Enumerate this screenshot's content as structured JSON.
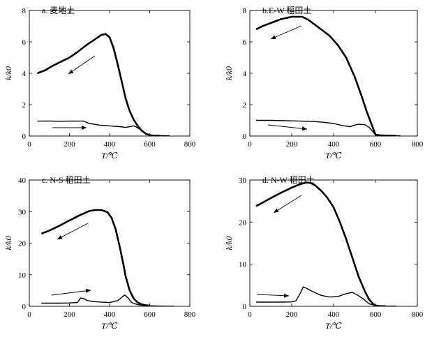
{
  "chart_data": [
    {
      "type": "line",
      "title": "a. 麦地土",
      "xlabel": "T/℃",
      "ylabel": "k/k0",
      "xlim": [
        0,
        800
      ],
      "ylim": [
        0,
        8
      ],
      "x_ticks": [
        "0",
        "200",
        "400",
        "600",
        "800"
      ],
      "y_ticks": [
        "0",
        "2",
        "4",
        "6",
        "8"
      ],
      "series": [
        {
          "name": "heating",
          "x": [
            40,
            100,
            150,
            200,
            250,
            270,
            280,
            300,
            350,
            400,
            450,
            480,
            500,
            520,
            530,
            560,
            580,
            600,
            650,
            700
          ],
          "y": [
            0.95,
            0.96,
            0.94,
            0.95,
            0.95,
            0.96,
            0.9,
            0.8,
            0.7,
            0.65,
            0.6,
            0.55,
            0.6,
            0.65,
            0.6,
            0.35,
            0.15,
            0.05,
            0.03,
            0.02
          ]
        },
        {
          "name": "cooling",
          "x": [
            40,
            80,
            120,
            160,
            200,
            240,
            280,
            320,
            360,
            380,
            400,
            420,
            440,
            460,
            480,
            500,
            520,
            540,
            560,
            580,
            600,
            620,
            650
          ],
          "y": [
            4.0,
            4.2,
            4.5,
            4.75,
            5.0,
            5.35,
            5.75,
            6.1,
            6.45,
            6.5,
            6.3,
            5.6,
            4.6,
            3.5,
            2.4,
            1.6,
            1.05,
            0.65,
            0.35,
            0.15,
            0.06,
            0.03,
            0.02
          ]
        }
      ]
    },
    {
      "type": "line",
      "title": "b.E-W 稻田土",
      "xlabel": "T/℃",
      "ylabel": "k/k0",
      "xlim": [
        0,
        800
      ],
      "ylim": [
        0,
        8
      ],
      "x_ticks": [
        "0",
        "200",
        "400",
        "600",
        "800"
      ],
      "y_ticks": [
        "0",
        "2",
        "4",
        "6",
        "8"
      ],
      "series": [
        {
          "name": "heating",
          "x": [
            30,
            100,
            200,
            300,
            350,
            400,
            450,
            480,
            500,
            520,
            550,
            570,
            590,
            600,
            620,
            650,
            700,
            720
          ],
          "y": [
            1.0,
            1.0,
            0.97,
            0.93,
            0.88,
            0.8,
            0.65,
            0.6,
            0.7,
            0.75,
            0.72,
            0.55,
            0.25,
            0.08,
            0.03,
            0.02,
            0.02,
            0.02
          ]
        },
        {
          "name": "cooling",
          "x": [
            30,
            60,
            100,
            150,
            200,
            250,
            280,
            300,
            340,
            380,
            420,
            460,
            500,
            530,
            560,
            590,
            600,
            620,
            650,
            700
          ],
          "y": [
            6.8,
            7.0,
            7.2,
            7.45,
            7.6,
            7.6,
            7.4,
            7.2,
            6.8,
            6.4,
            5.8,
            5.0,
            3.8,
            2.7,
            1.5,
            0.45,
            0.1,
            0.05,
            0.03,
            0.02
          ]
        }
      ]
    },
    {
      "type": "line",
      "title": "c. N-S 稻田土",
      "xlabel": "T/℃",
      "ylabel": "k/k0",
      "xlim": [
        0,
        800
      ],
      "ylim": [
        0,
        40
      ],
      "x_ticks": [
        "0",
        "200",
        "400",
        "600",
        "800"
      ],
      "y_ticks": [
        "0",
        "10",
        "20",
        "30",
        "40"
      ],
      "series": [
        {
          "name": "heating",
          "x": [
            60,
            100,
            150,
            200,
            240,
            255,
            270,
            290,
            320,
            360,
            400,
            440,
            460,
            475,
            490,
            510,
            540,
            580,
            620,
            680,
            720
          ],
          "y": [
            1.0,
            1.0,
            1.0,
            1.05,
            1.2,
            2.6,
            2.5,
            1.8,
            1.5,
            1.3,
            1.2,
            1.8,
            2.8,
            3.6,
            2.8,
            1.2,
            0.5,
            0.2,
            0.1,
            0.05,
            0.05
          ]
        },
        {
          "name": "cooling",
          "x": [
            60,
            100,
            150,
            200,
            250,
            300,
            330,
            360,
            390,
            410,
            430,
            450,
            470,
            480,
            500,
            520,
            540,
            560,
            580,
            600
          ],
          "y": [
            23.0,
            24.0,
            25.5,
            27.2,
            28.8,
            30.2,
            30.5,
            30.5,
            29.8,
            28.0,
            24.5,
            19.0,
            13.0,
            9.5,
            5.0,
            2.5,
            1.2,
            0.6,
            0.3,
            0.2
          ]
        }
      ]
    },
    {
      "type": "line",
      "title": "d. N-W 稻田土",
      "xlabel": "T/℃",
      "ylabel": "k/k0",
      "xlim": [
        0,
        800
      ],
      "ylim": [
        0,
        30
      ],
      "x_ticks": [
        "0",
        "200",
        "400",
        "600",
        "800"
      ],
      "y_ticks": [
        "0",
        "10",
        "20",
        "30"
      ],
      "series": [
        {
          "name": "heating",
          "x": [
            30,
            100,
            150,
            200,
            220,
            240,
            255,
            270,
            300,
            340,
            380,
            420,
            460,
            490,
            510,
            540,
            570,
            600,
            640,
            680,
            700
          ],
          "y": [
            1.0,
            1.0,
            1.0,
            1.05,
            1.3,
            3.0,
            4.6,
            4.3,
            3.5,
            2.6,
            2.2,
            2.3,
            3.0,
            3.3,
            2.8,
            1.8,
            0.6,
            0.2,
            0.05,
            0.05,
            0.05
          ]
        },
        {
          "name": "cooling",
          "x": [
            30,
            60,
            100,
            150,
            200,
            240,
            270,
            290,
            310,
            340,
            370,
            400,
            430,
            460,
            490,
            520,
            550,
            570,
            590,
            600,
            620,
            650
          ],
          "y": [
            23.8,
            24.6,
            25.7,
            27.0,
            28.2,
            29.0,
            29.4,
            29.3,
            28.8,
            27.5,
            25.8,
            23.5,
            20.0,
            16.0,
            11.5,
            7.0,
            3.5,
            1.6,
            0.5,
            0.2,
            0.05,
            0.03
          ]
        }
      ]
    }
  ]
}
